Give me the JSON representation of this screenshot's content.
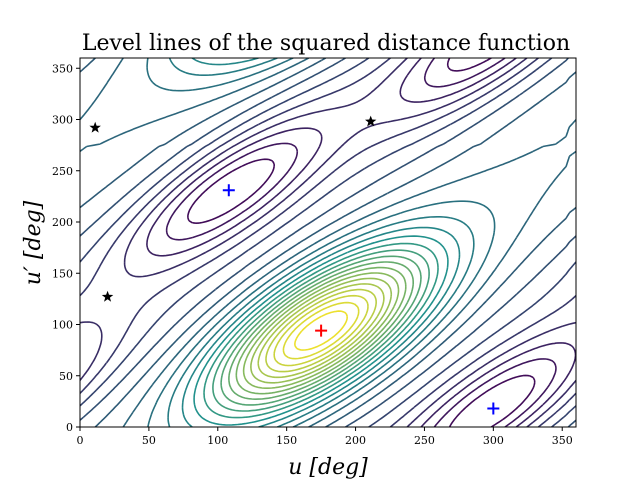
{
  "chart_data": {
    "type": "contour",
    "title": "Level lines of the squared distance function",
    "xlabel": "u [deg]",
    "ylabel": "u′ [deg]",
    "xlim": [
      0,
      360
    ],
    "ylim": [
      0,
      360
    ],
    "xticks": [
      0,
      50,
      100,
      150,
      200,
      250,
      300,
      350
    ],
    "yticks": [
      0,
      50,
      100,
      150,
      200,
      250,
      300,
      350
    ],
    "grid": false,
    "legend": "none",
    "colormap": "viridis",
    "colors": {
      "low": "#440154",
      "mid": "#21918c",
      "high": "#fde725",
      "maximum_marker": "#ff0000",
      "minimum_marker": "#0000ff",
      "saddle_marker": "#000000"
    },
    "critical_points": {
      "maxima": [
        {
          "u": 175,
          "u_prime": 94
        }
      ],
      "minima": [
        {
          "u": 108,
          "u_prime": 231
        },
        {
          "u": 300,
          "u_prime": 18
        }
      ],
      "saddles": [
        {
          "u": 11,
          "u_prime": 292
        },
        {
          "u": 20,
          "u_prime": 127
        },
        {
          "u": 211,
          "u_prime": 298
        }
      ]
    }
  }
}
